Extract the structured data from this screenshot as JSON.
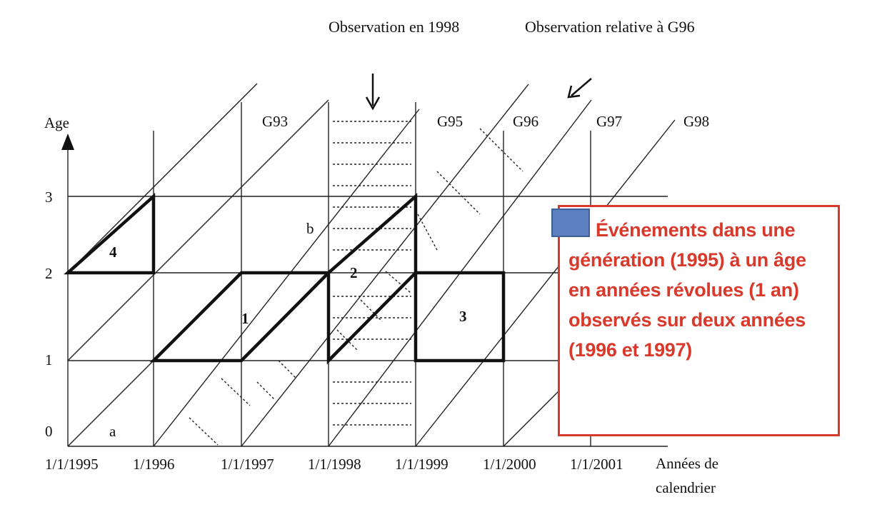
{
  "header": {
    "obs_1998": "Observation en 1998",
    "obs_g96": "Observation relative à G96"
  },
  "axes": {
    "y_title": "Age",
    "y_ticks": [
      "0",
      "1",
      "2",
      "3"
    ],
    "x_ticks": [
      "1/1/1995",
      "1/1996",
      "1/1/1997",
      "1/1/1998",
      "1/1/1999",
      "1/1/2000",
      "1/1/2001"
    ],
    "x_title_line1": "Années de",
    "x_title_line2": "calendrier"
  },
  "generations": [
    "G93",
    "G95",
    "G96",
    "G97",
    "G98"
  ],
  "regions": {
    "r1": "1",
    "r2": "2",
    "r3": "3",
    "r4": "4",
    "a": "a",
    "b": "b"
  },
  "callout": {
    "text": "Événements dans une génération (1995) à un âge en années révolues (1 an) observés sur deux années (1996 et 1997)",
    "swatch_color": "#5b7fbf",
    "text_color": "#d9392b"
  }
}
